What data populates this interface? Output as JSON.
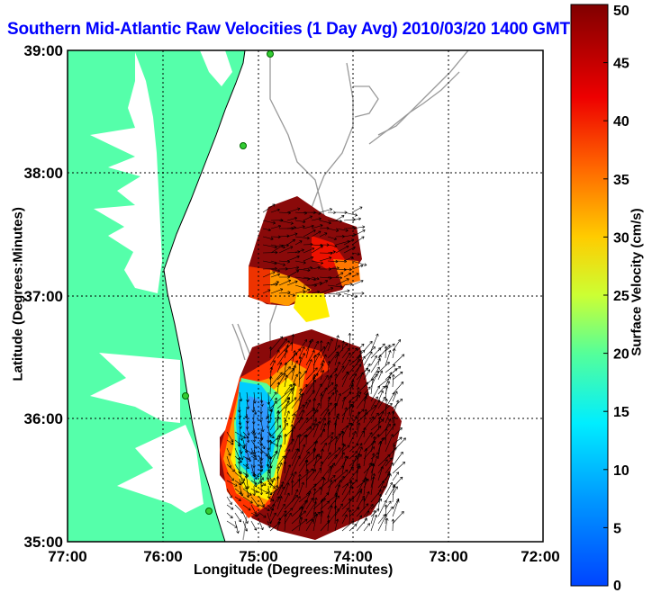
{
  "title": "Southern Mid-Atlantic Raw Velocities (1 Day Avg) 2010/03/20 1400 GMT",
  "axes": {
    "xlabel": "Longitude (Degrees:Minutes)",
    "ylabel": "Latitude (Degrees:Minutes)",
    "x_ticks": [
      "77:00",
      "76:00",
      "75:00",
      "74:00",
      "73:00",
      "72:00"
    ],
    "y_ticks": [
      "39:00",
      "38:00",
      "37:00",
      "36:00",
      "35:00"
    ],
    "grid": "dotted"
  },
  "colorbar": {
    "label": "Surface Velocity (cm/s)",
    "ticks": [
      "50",
      "45",
      "40",
      "35",
      "30",
      "25",
      "20",
      "15",
      "10",
      "5",
      "0"
    ],
    "min": 0,
    "max": 50,
    "colormap": "jet"
  },
  "colors": {
    "title": "#0000ff",
    "land": "#55ffaa",
    "contour": "#999999",
    "station": "#33cc33"
  }
}
